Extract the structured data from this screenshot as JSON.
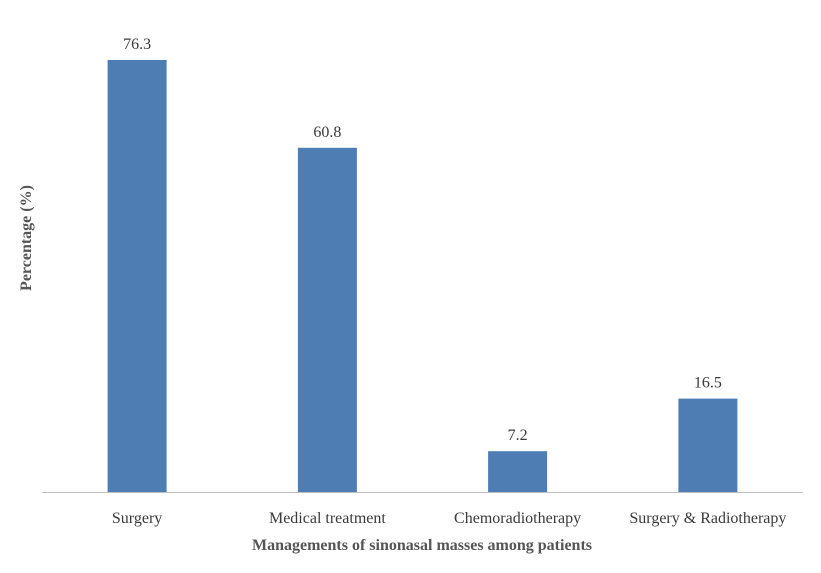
{
  "chart_data": {
    "type": "bar",
    "categories": [
      "Surgery",
      "Medical treatment",
      "Chemoradiotherapy",
      "Surgery & Radiotherapy"
    ],
    "values": [
      76.3,
      60.8,
      7.2,
      16.5
    ],
    "data_labels": [
      "76.3",
      "60.8",
      "7.2",
      "16.5"
    ],
    "title": "",
    "xlabel": "Managements  of  sinonasal masses among  patients",
    "ylabel": "Percentage (%)",
    "ylim": [
      0,
      76.3
    ],
    "grid": false,
    "legend": "none",
    "bar_color": "#4e7db3",
    "axis_color": "#bfbfbf"
  }
}
